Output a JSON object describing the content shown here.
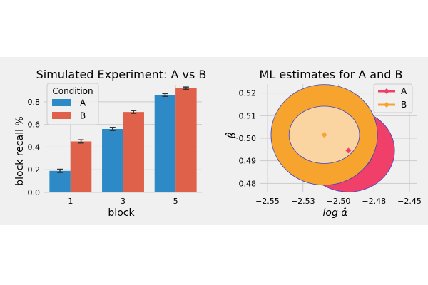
{
  "figure": {
    "background": "#f0f0f0",
    "axes_background": "#f0f0f0",
    "grid_color": "#cbcbcb",
    "text_color": "#000000"
  },
  "chart_data": [
    {
      "type": "bar",
      "title": "Simulated Experiment: A vs B",
      "xlabel": "block",
      "ylabel": "block recall %",
      "categories": [
        "1",
        "3",
        "5"
      ],
      "ylim": [
        0,
        0.95
      ],
      "yticks": [
        0.0,
        0.2,
        0.4,
        0.6,
        0.8
      ],
      "ytick_labels": [
        "0.0",
        "0.2",
        "0.4",
        "0.6",
        "0.8"
      ],
      "grid": true,
      "legend": {
        "title": "Condition",
        "placement": "top-left"
      },
      "series": [
        {
          "name": "A",
          "color": "#2d8ac6",
          "values": [
            0.19,
            0.56,
            0.86
          ],
          "err": [
            0.008,
            0.008,
            0.006
          ]
        },
        {
          "name": "B",
          "color": "#e0614a",
          "values": [
            0.45,
            0.71,
            0.92
          ],
          "err": [
            0.008,
            0.006,
            0.004
          ]
        }
      ]
    },
    {
      "type": "scatter",
      "title": "ML estimates for A and B",
      "xlabel": "log α̂",
      "ylabel": "β̂",
      "xlim": [
        -2.555,
        -2.445
      ],
      "ylim": [
        0.476,
        0.524
      ],
      "xticks": [
        -2.55,
        -2.525,
        -2.5,
        -2.475,
        -2.45
      ],
      "xtick_labels": [
        "−2.55",
        "−2.53",
        "−2.50",
        "−2.48",
        "−2.45"
      ],
      "yticks": [
        0.48,
        0.49,
        0.5,
        0.51,
        0.52
      ],
      "ytick_labels": [
        "0.48",
        "0.49",
        "0.50",
        "0.51",
        "0.52"
      ],
      "grid": true,
      "legend": {
        "placement": "top-right"
      },
      "series": [
        {
          "name": "A",
          "color": "#f0406a",
          "point": {
            "x": -2.493,
            "y": 0.4945
          },
          "outer": {
            "rx": 0.0325,
            "ry": 0.0183,
            "color": "#f0406a"
          },
          "inner": {
            "rx": 0.0175,
            "ry": 0.0096,
            "color": "#f4a0b6"
          }
        },
        {
          "name": "B",
          "color": "#f7a42f",
          "point": {
            "x": -2.51,
            "y": 0.5015
          },
          "outer": {
            "rx": 0.0375,
            "ry": 0.0223,
            "color": "#f7a42f"
          },
          "inner": {
            "rx": 0.0248,
            "ry": 0.0127,
            "color": "#fbd5a1"
          }
        }
      ]
    }
  ]
}
